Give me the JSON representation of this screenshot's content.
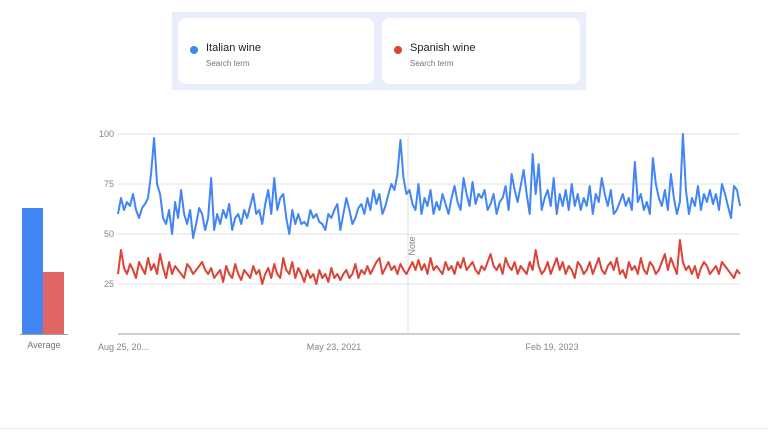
{
  "terms": [
    {
      "name": "Italian wine",
      "subtitle": "Search term",
      "color": "#4285f4",
      "dot_icon": "blue-dot-icon"
    },
    {
      "name": "Spanish wine",
      "subtitle": "Search term",
      "color": "#db4437",
      "dot_icon": "red-dot-icon"
    }
  ],
  "averages": {
    "label": "Average",
    "values": [
      63,
      31
    ],
    "colors": [
      "#4285f4",
      "#e06666"
    ]
  },
  "note_label": "Note",
  "chart_data": {
    "type": "line",
    "x_tick_labels": [
      "Aug 25, 20...",
      "May 23, 2021",
      "Feb 19, 2023"
    ],
    "yticks": [
      25,
      50,
      75,
      100
    ],
    "ylim": [
      0,
      100
    ],
    "grid": true,
    "legend": "top",
    "series": [
      {
        "name": "Italian wine",
        "color": "#4285f4",
        "values": [
          60,
          68,
          62,
          66,
          64,
          70,
          62,
          58,
          63,
          65,
          68,
          80,
          98,
          75,
          70,
          58,
          55,
          62,
          50,
          66,
          58,
          72,
          60,
          55,
          62,
          48,
          55,
          63,
          60,
          52,
          58,
          78,
          52,
          60,
          55,
          62,
          58,
          65,
          52,
          58,
          60,
          55,
          62,
          58,
          64,
          70,
          60,
          62,
          55,
          65,
          72,
          60,
          78,
          62,
          68,
          70,
          58,
          50,
          62,
          55,
          60,
          55,
          56,
          54,
          62,
          58,
          60,
          56,
          55,
          52,
          60,
          58,
          62,
          65,
          52,
          60,
          68,
          62,
          55,
          58,
          63,
          65,
          60,
          68,
          62,
          72,
          65,
          70,
          60,
          64,
          70,
          75,
          72,
          80,
          97,
          78,
          70,
          72,
          65,
          62,
          75,
          60,
          68,
          64,
          72,
          60,
          66,
          62,
          70,
          65,
          60,
          68,
          74,
          66,
          62,
          78,
          70,
          64,
          76,
          65,
          70,
          68,
          72,
          62,
          65,
          70,
          60,
          66,
          68,
          74,
          62,
          80,
          72,
          66,
          74,
          82,
          70,
          60,
          90,
          70,
          85,
          62,
          68,
          72,
          64,
          78,
          60,
          70,
          64,
          72,
          62,
          75,
          64,
          70,
          62,
          68,
          64,
          74,
          60,
          70,
          66,
          78,
          70,
          64,
          72,
          60,
          62,
          66,
          70,
          64,
          68,
          62,
          86,
          66,
          70,
          62,
          66,
          60,
          88,
          75,
          68,
          64,
          72,
          62,
          80,
          68,
          60,
          66,
          100,
          72,
          60,
          68,
          64,
          74,
          62,
          70,
          66,
          72,
          65,
          70,
          62,
          75,
          70,
          64,
          58,
          74,
          72,
          64
        ]
      },
      {
        "name": "Spanish wine",
        "color": "#db4437",
        "values": [
          30,
          42,
          33,
          30,
          35,
          32,
          28,
          36,
          33,
          30,
          38,
          32,
          35,
          30,
          40,
          33,
          28,
          36,
          30,
          34,
          32,
          30,
          28,
          35,
          33,
          30,
          32,
          34,
          36,
          32,
          30,
          33,
          28,
          30,
          32,
          26,
          34,
          30,
          28,
          35,
          30,
          27,
          32,
          30,
          28,
          34,
          30,
          32,
          25,
          30,
          33,
          28,
          35,
          30,
          28,
          38,
          32,
          30,
          36,
          28,
          33,
          30,
          26,
          32,
          28,
          30,
          25,
          32,
          28,
          30,
          26,
          33,
          28,
          30,
          27,
          30,
          32,
          28,
          30,
          35,
          28,
          32,
          30,
          34,
          30,
          33,
          36,
          38,
          30,
          33,
          36,
          32,
          34,
          30,
          35,
          32,
          30,
          33,
          36,
          32,
          37,
          32,
          35,
          30,
          38,
          32,
          34,
          32,
          30,
          36,
          32,
          34,
          30,
          36,
          33,
          38,
          32,
          34,
          36,
          32,
          30,
          34,
          32,
          36,
          40,
          34,
          32,
          35,
          30,
          38,
          34,
          32,
          36,
          30,
          34,
          32,
          30,
          36,
          32,
          42,
          34,
          30,
          32,
          36,
          30,
          34,
          38,
          32,
          36,
          30,
          34,
          32,
          28,
          36,
          34,
          30,
          32,
          36,
          30,
          34,
          38,
          32,
          30,
          34,
          36,
          32,
          38,
          30,
          32,
          28,
          36,
          32,
          34,
          30,
          38,
          32,
          30,
          36,
          34,
          30,
          32,
          36,
          40,
          32,
          38,
          34,
          30,
          47,
          36,
          32,
          34,
          30,
          34,
          28,
          33,
          36,
          34,
          30,
          32,
          34,
          30,
          36,
          34,
          32,
          30,
          28,
          32,
          30
        ]
      }
    ]
  }
}
